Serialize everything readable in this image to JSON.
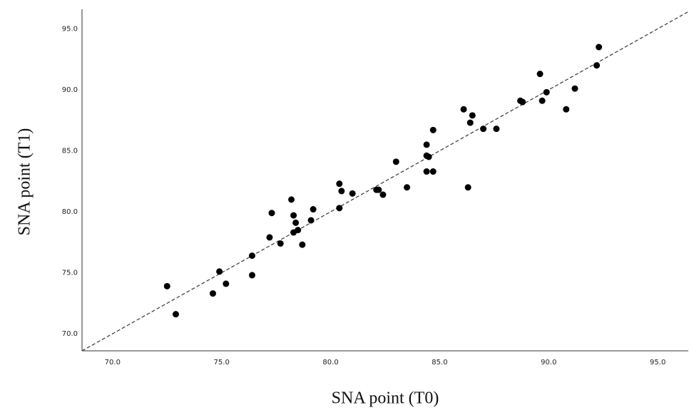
{
  "chart_data": {
    "type": "scatter",
    "x_label": "SNA point (T0)",
    "y_label": "SNA point (T1)",
    "xlim": [
      68.6,
      96.4
    ],
    "ylim": [
      68.6,
      96.6
    ],
    "xticks": [
      {
        "value": 70,
        "label": "70.0"
      },
      {
        "value": 75,
        "label": "75.0"
      },
      {
        "value": 80,
        "label": "80.0"
      },
      {
        "value": 85,
        "label": "85.0"
      },
      {
        "value": 90,
        "label": "90.0"
      },
      {
        "value": 95,
        "label": "95.0"
      }
    ],
    "yticks": [
      {
        "value": 70,
        "label": "70.0"
      },
      {
        "value": 75,
        "label": "75.0"
      },
      {
        "value": 80,
        "label": "80.0"
      },
      {
        "value": 85,
        "label": "85.0"
      },
      {
        "value": 90,
        "label": "90.0"
      },
      {
        "value": 95,
        "label": "95.0"
      }
    ],
    "identity_line": true,
    "grid": false,
    "color": "#000000",
    "x": [
      72.5,
      72.9,
      74.6,
      74.9,
      75.2,
      76.4,
      76.4,
      77.2,
      77.3,
      77.7,
      78.2,
      78.3,
      78.3,
      78.4,
      78.5,
      78.7,
      79.1,
      79.2,
      80.4,
      80.4,
      80.5,
      81.0,
      82.1,
      82.2,
      82.4,
      83.0,
      83.5,
      84.4,
      84.4,
      84.5,
      84.4,
      84.7,
      84.7,
      86.1,
      86.3,
      86.4,
      86.5,
      87.0,
      87.6,
      88.7,
      88.8,
      89.6,
      89.7,
      89.9,
      90.8,
      91.2,
      92.2,
      92.3
    ],
    "y": [
      73.9,
      71.6,
      73.3,
      75.1,
      74.1,
      76.4,
      74.8,
      77.9,
      79.9,
      77.4,
      81.0,
      79.7,
      78.3,
      79.1,
      78.5,
      77.3,
      79.3,
      80.2,
      82.3,
      80.3,
      81.7,
      81.5,
      81.8,
      81.8,
      81.4,
      84.1,
      82.0,
      85.5,
      84.6,
      84.5,
      83.3,
      83.3,
      86.7,
      88.4,
      82.0,
      87.3,
      87.9,
      86.8,
      86.8,
      89.1,
      89.0,
      91.3,
      89.1,
      89.8,
      88.4,
      90.1,
      92.0,
      93.5
    ]
  }
}
